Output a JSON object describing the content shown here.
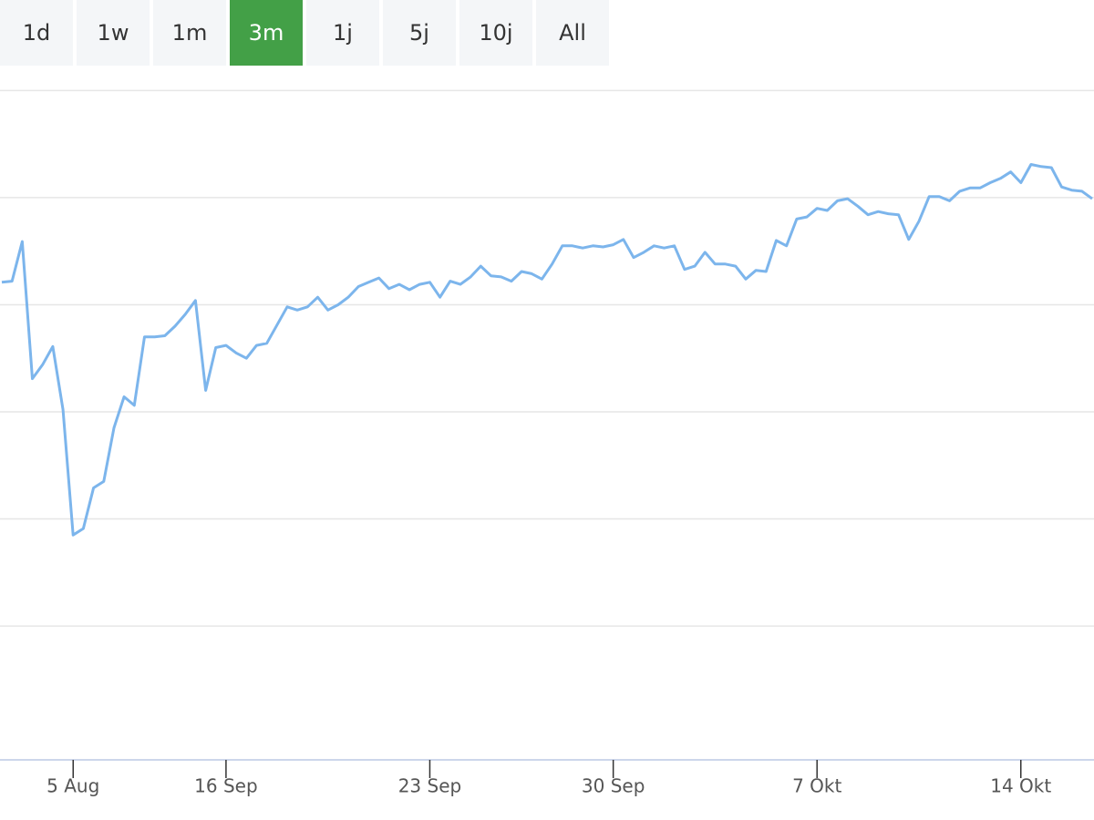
{
  "buttons": {
    "labels": [
      "1d",
      "1w",
      "1m",
      "3m",
      "1j",
      "5j",
      "10j",
      "All"
    ],
    "active": 3
  },
  "chart_data": {
    "type": "line",
    "categories": [
      null,
      null,
      null,
      null,
      null,
      null,
      null,
      "5 Aug",
      null,
      null,
      null,
      null,
      null,
      null,
      null,
      null,
      null,
      null,
      null,
      null,
      null,
      null,
      "16 Sep",
      null,
      null,
      null,
      null,
      null,
      null,
      null,
      null,
      null,
      null,
      null,
      null,
      null,
      null,
      null,
      null,
      null,
      null,
      null,
      "23 Sep",
      null,
      null,
      null,
      null,
      null,
      null,
      null,
      null,
      null,
      null,
      null,
      null,
      null,
      null,
      null,
      null,
      null,
      "30 Sep",
      null,
      null,
      null,
      null,
      null,
      null,
      null,
      null,
      null,
      null,
      null,
      null,
      null,
      null,
      null,
      null,
      null,
      null,
      null,
      "7 Okt",
      null,
      null,
      null,
      null,
      null,
      null,
      null,
      null,
      null,
      null,
      null,
      null,
      null,
      null,
      null,
      null,
      null,
      null,
      null,
      "14 Okt",
      null,
      null,
      null,
      null,
      null,
      null,
      null
    ],
    "values": [
      3.21,
      3.22,
      3.59,
      2.31,
      2.44,
      2.61,
      2.02,
      0.85,
      0.91,
      1.29,
      1.35,
      1.85,
      2.14,
      2.06,
      2.7,
      2.7,
      2.71,
      2.8,
      2.91,
      3.04,
      2.2,
      2.6,
      2.62,
      2.55,
      2.5,
      2.62,
      2.64,
      2.81,
      2.98,
      2.95,
      2.98,
      3.07,
      2.95,
      3.0,
      3.07,
      3.17,
      3.21,
      3.25,
      3.15,
      3.19,
      3.14,
      3.19,
      3.21,
      3.07,
      3.22,
      3.19,
      3.26,
      3.36,
      3.27,
      3.26,
      3.22,
      3.31,
      3.29,
      3.24,
      3.38,
      3.55,
      3.55,
      3.53,
      3.55,
      3.54,
      3.56,
      3.61,
      3.44,
      3.49,
      3.55,
      3.53,
      3.55,
      3.33,
      3.36,
      3.49,
      3.38,
      3.38,
      3.36,
      3.24,
      3.32,
      3.31,
      3.6,
      3.55,
      3.8,
      3.82,
      3.9,
      3.88,
      3.97,
      3.99,
      3.92,
      3.84,
      3.87,
      3.85,
      3.84,
      3.61,
      3.78,
      4.01,
      4.01,
      3.97,
      4.06,
      4.09,
      4.09,
      4.14,
      4.18,
      4.24,
      4.14,
      4.31,
      4.29,
      4.28,
      4.1,
      4.07,
      4.06,
      3.99
    ],
    "color": "#7cb5ec",
    "ylim": [
      -1.25,
      5.25
    ],
    "yticks": [
      0,
      1,
      2,
      3,
      4,
      5
    ],
    "grid": true
  }
}
